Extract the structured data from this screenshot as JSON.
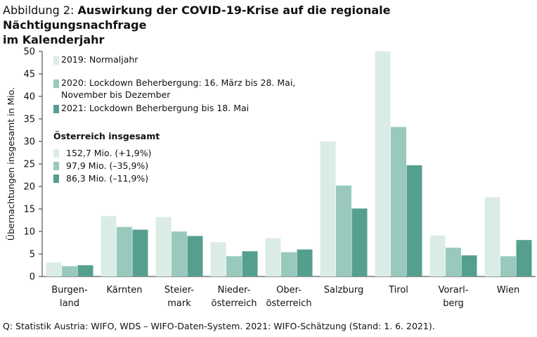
{
  "title": {
    "prefix": "Abbildung 2: ",
    "main_line1": "Auswirkung der COVID-19-Krise auf die regionale Nächtigungsnachfrage",
    "main_line2": "im Kalenderjahr"
  },
  "source": "Q: Statistik Austria: WIFO, WDS – WIFO-Daten-System. 2021: WIFO-Schätzung (Stand: 1. 6. 2021).",
  "colors": {
    "s2019": "#dbece6",
    "s2020": "#99c9bd",
    "s2021": "#559f8f",
    "axis": "#333333"
  },
  "chart_data": {
    "type": "bar",
    "ylabel": "Übernachtungen insgesamt in Mio.",
    "ylim": [
      0,
      50
    ],
    "yticks": [
      0,
      5,
      10,
      15,
      20,
      25,
      30,
      35,
      40,
      45,
      50
    ],
    "grid": false,
    "categories": [
      [
        "Burgen-",
        "land"
      ],
      [
        "Kärnten"
      ],
      [
        "Steier-",
        "mark"
      ],
      [
        "Nieder-",
        "österreich"
      ],
      [
        "Ober-",
        "österreich"
      ],
      [
        "Salzburg"
      ],
      [
        "Tirol"
      ],
      [
        "Vorarl-",
        "berg"
      ],
      [
        "Wien"
      ]
    ],
    "series": [
      {
        "name": [
          "2019: Normaljahr"
        ],
        "color": "#dbece6",
        "values": [
          3.1,
          13.4,
          13.2,
          7.6,
          8.5,
          30.0,
          50.0,
          9.1,
          17.6
        ]
      },
      {
        "name": [
          "2020: Lockdown Beherbergung: 16. März bis 28. Mai,",
          "November bis Dezember"
        ],
        "color": "#99c9bd",
        "values": [
          2.3,
          11.0,
          10.0,
          4.5,
          5.4,
          20.2,
          33.2,
          6.4,
          4.5
        ]
      },
      {
        "name": [
          "2021: Lockdown Beherbergung bis 18. Mai"
        ],
        "color": "#559f8f",
        "values": [
          2.5,
          10.4,
          9.0,
          5.6,
          6.0,
          15.1,
          24.7,
          4.7,
          8.1
        ]
      }
    ],
    "legend_position": "top-left",
    "austria_total": {
      "heading": "Österreich insgesamt",
      "rows": [
        "152,7 Mio. (+1,9%)",
        "97,9 Mio. (–35,9%)",
        "86,3 Mio. (–11,9%)"
      ]
    }
  }
}
